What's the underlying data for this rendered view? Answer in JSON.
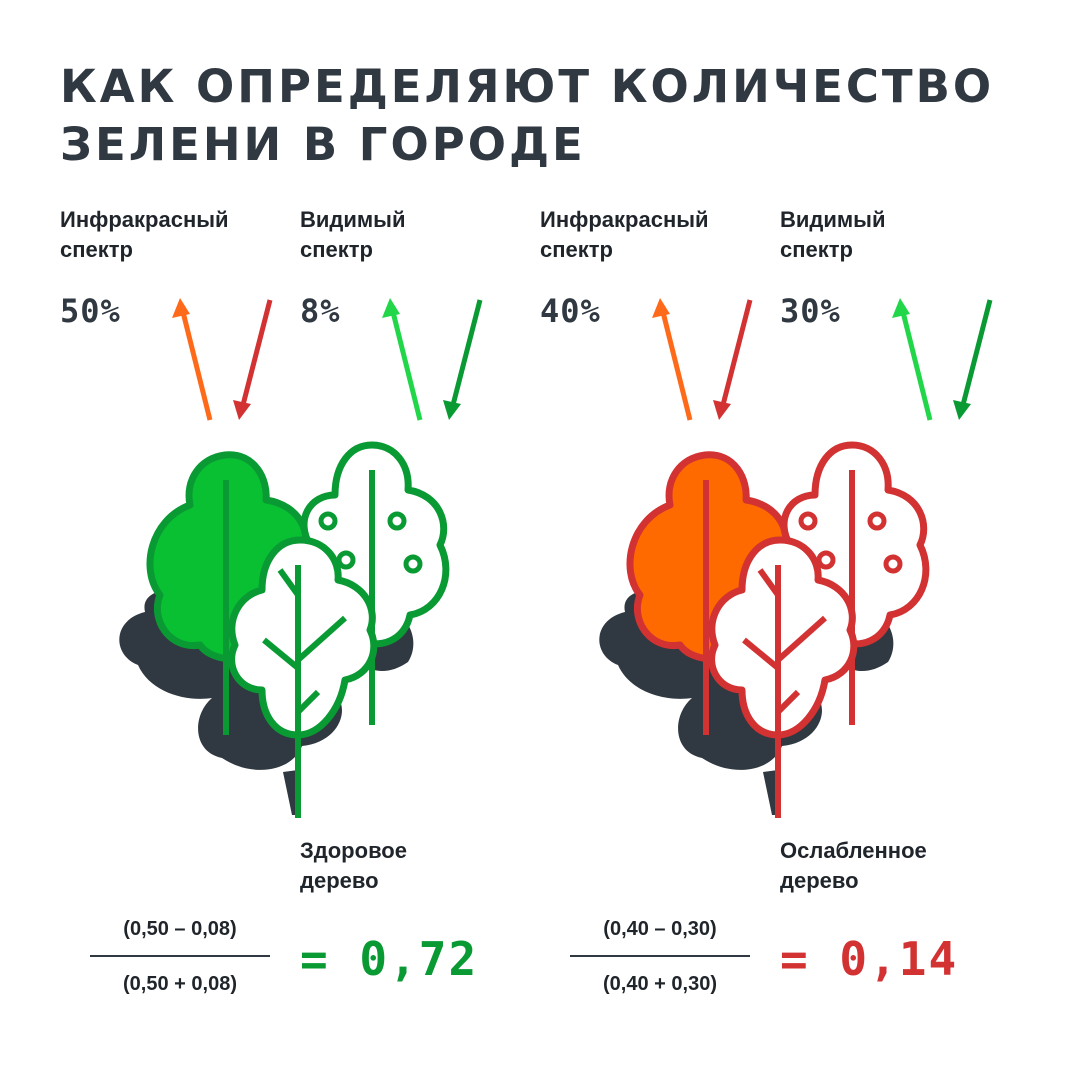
{
  "title": {
    "line1": "Как определяют количество",
    "line2": "зелени в городе"
  },
  "colors": {
    "dark": "#303841",
    "healthy_fill": "#08C032",
    "healthy_stroke": "#0A9A34",
    "weak_fill": "#FF6A00",
    "weak_stroke": "#D23232",
    "arrow_ir_out": "#FF6A1A",
    "arrow_ir_in": "#D23232",
    "arrow_vis_out": "#22D64A",
    "arrow_vis_in": "#0A9A34"
  },
  "healthy": {
    "infrared": {
      "line1": "Инфракрасный",
      "line2": "спектр",
      "value": "50%"
    },
    "visible": {
      "line1": "Видимый",
      "line2": "спектр",
      "value": "8%"
    },
    "label": {
      "line1": "Здоровое",
      "line2": "дерево"
    },
    "formula": {
      "numerator": "(0,50 – 0,08)",
      "denominator": "(0,50 + 0,08)",
      "result": "= 0,72"
    }
  },
  "weak": {
    "infrared": {
      "line1": "Инфракрасный",
      "line2": "спектр",
      "value": "40%"
    },
    "visible": {
      "line1": "Видимый",
      "line2": "спектр",
      "value": "30%"
    },
    "label": {
      "line1": "Ослабленное",
      "line2": "дерево"
    },
    "formula": {
      "numerator": "(0,40 – 0,30)",
      "denominator": "(0,40 + 0,30)",
      "result": "= 0,14"
    }
  },
  "icons": [
    "arrow-up-icon",
    "arrow-down-icon",
    "tree-group-icon"
  ]
}
